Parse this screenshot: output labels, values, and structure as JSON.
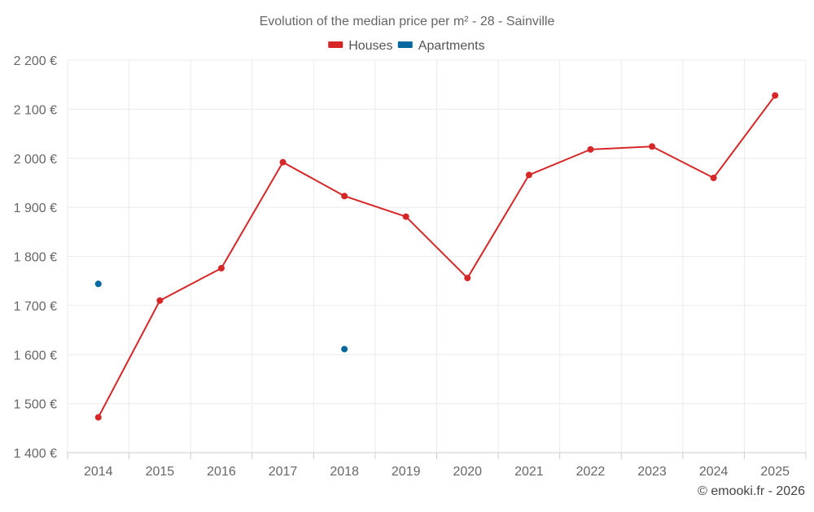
{
  "chart_data": {
    "type": "line",
    "title": "Evolution of the median price per m² - 28 - Sainville",
    "categories": [
      "2014",
      "2015",
      "2016",
      "2017",
      "2018",
      "2019",
      "2020",
      "2021",
      "2022",
      "2023",
      "2024",
      "2025"
    ],
    "series": [
      {
        "name": "Houses",
        "color": "#d62728",
        "values": [
          1472,
          1710,
          1776,
          1992,
          1923,
          1881,
          1756,
          1966,
          2018,
          2024,
          1960,
          2128
        ]
      },
      {
        "name": "Apartments",
        "color": "#00689e",
        "values": [
          1744,
          null,
          null,
          null,
          1611,
          null,
          null,
          null,
          null,
          null,
          null,
          null
        ]
      }
    ],
    "ylim": [
      1400,
      2200
    ],
    "yticks": [
      1400,
      1500,
      1600,
      1700,
      1800,
      1900,
      2000,
      2100,
      2200
    ],
    "ytick_labels": [
      "1 400 €",
      "1 500 €",
      "1 600 €",
      "1 700 €",
      "1 800 €",
      "1 900 €",
      "2 000 €",
      "2 100 €",
      "2 200 €"
    ],
    "xlabel": "",
    "ylabel": "",
    "grid": true,
    "legend_position": "top-center"
  },
  "credit": "© emooki.fr - 2026"
}
